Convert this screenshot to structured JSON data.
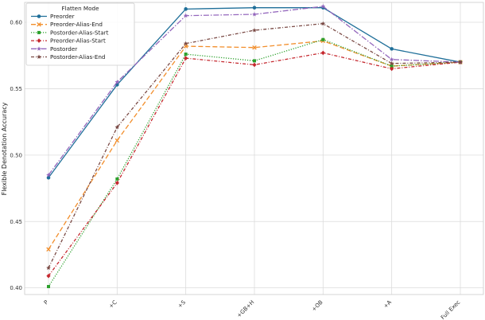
{
  "chart_data": {
    "type": "line",
    "xlabel": "",
    "ylabel": "Flexible Denotation Accuracy",
    "categories": [
      "P",
      "+C",
      "+S",
      "+GB+H",
      "+OB",
      "+A",
      "Full Exec"
    ],
    "ylim": [
      0.395,
      0.615
    ],
    "yticks": [
      "0.40",
      "0.45",
      "0.50",
      "0.55",
      "0.60"
    ],
    "ytick_values": [
      0.4,
      0.45,
      0.5,
      0.55,
      0.6
    ],
    "grid": true,
    "legend": {
      "title": "Flatten Mode",
      "placement": "top-left"
    },
    "series": [
      {
        "name": "Preorder",
        "values": [
          0.483,
          0.553,
          0.61,
          0.611,
          0.611,
          0.58,
          0.57
        ],
        "color": "#1f6f99",
        "dash": "solid",
        "marker": "circle"
      },
      {
        "name": "Preorder-Alias-End",
        "values": [
          0.429,
          0.511,
          0.582,
          0.581,
          0.586,
          0.567,
          0.57
        ],
        "color": "#f28e2b",
        "dash": "long-dash",
        "marker": "x"
      },
      {
        "name": "Postorder-Alias-Start",
        "values": [
          0.401,
          0.482,
          0.576,
          0.571,
          0.587,
          0.567,
          0.57
        ],
        "color": "#2ca02c",
        "dash": "dotted",
        "marker": "square"
      },
      {
        "name": "Preorder-Alias-Start",
        "values": [
          0.409,
          0.479,
          0.573,
          0.568,
          0.577,
          0.565,
          0.57
        ],
        "color": "#c5282f",
        "dash": "dash-dot",
        "marker": "diamond"
      },
      {
        "name": "Postorder",
        "values": [
          0.485,
          0.555,
          0.605,
          0.606,
          0.612,
          0.572,
          0.57
        ],
        "color": "#9467bd",
        "dash": "dash-dot-long",
        "marker": "star"
      },
      {
        "name": "Postorder-Alias-End",
        "values": [
          0.415,
          0.521,
          0.584,
          0.594,
          0.599,
          0.569,
          0.57
        ],
        "color": "#7a4a45",
        "dash": "dash-dot",
        "marker": "star"
      }
    ]
  }
}
